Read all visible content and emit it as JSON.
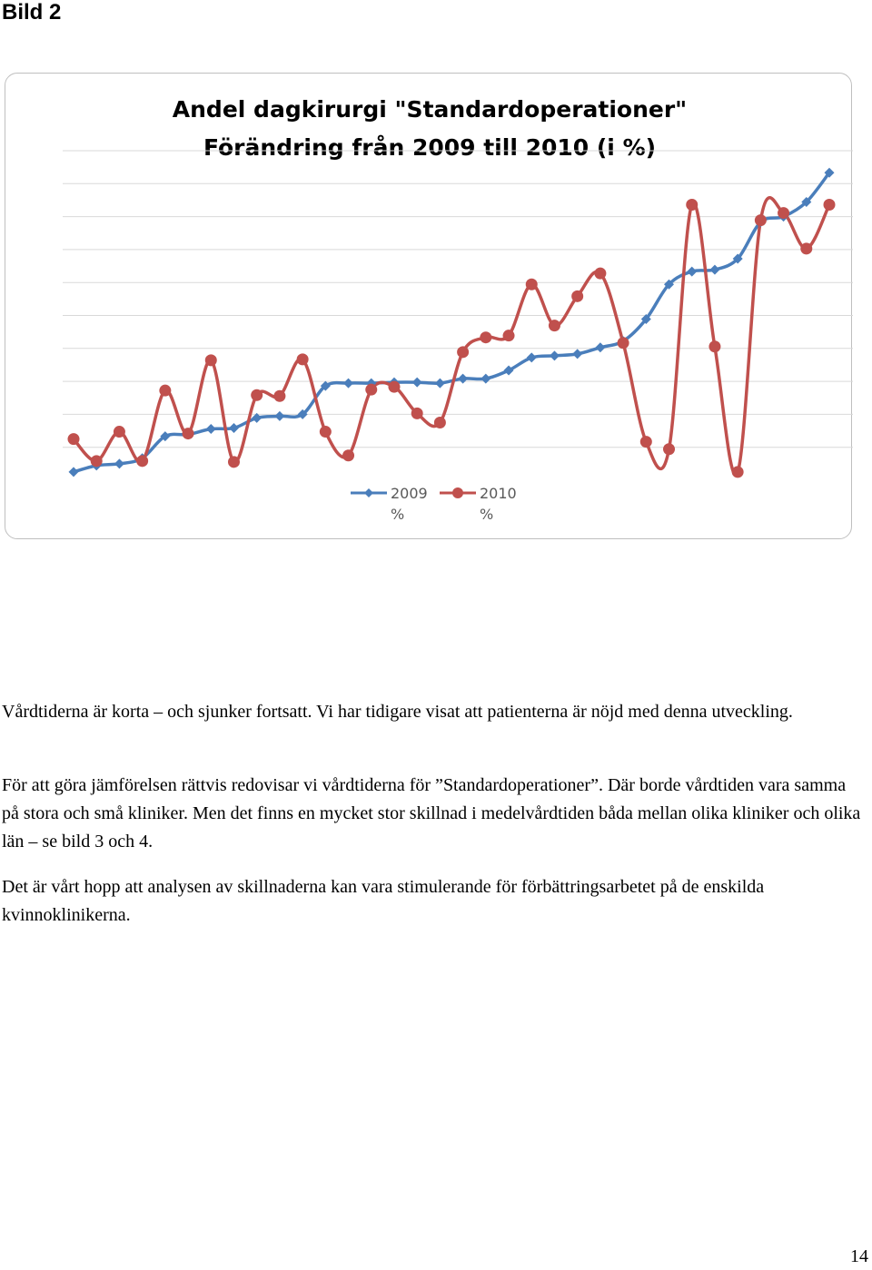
{
  "page": {
    "heading": "Bild 2",
    "page_number": "14"
  },
  "chart_data": {
    "type": "line",
    "title_line1": "Andel dagkirurgi  \"Standardoperationer\"",
    "title_line2": "Förändring från 2009 till 2010 (i %)",
    "xlabel": "",
    "ylabel": "",
    "grid": "horizontal",
    "legend_position": "bottom",
    "series": [
      {
        "name": "2009 %",
        "name_line1": "2009",
        "name_line2": "%",
        "color": "#4a7ebb",
        "marker": "diamond",
        "values": [
          0.9,
          1.6,
          1.8,
          2.4,
          4.8,
          5.0,
          5.6,
          5.7,
          6.8,
          7.0,
          7.2,
          10.3,
          10.6,
          10.6,
          10.7,
          10.7,
          10.6,
          11.1,
          11.1,
          12.0,
          13.4,
          13.6,
          13.8,
          14.5,
          15.2,
          17.6,
          21.4,
          22.8,
          23.0,
          24.2,
          28.2,
          28.8,
          30.4,
          33.6
        ]
      },
      {
        "name": "2010 %",
        "name_line1": "2010",
        "name_line2": "%",
        "color": "#c0504d",
        "marker": "circle",
        "values": [
          4.5,
          2.1,
          5.3,
          2.1,
          9.8,
          5.1,
          13.1,
          2.0,
          9.3,
          9.2,
          13.2,
          5.3,
          2.7,
          9.9,
          10.2,
          7.3,
          6.3,
          14.0,
          15.6,
          15.8,
          21.4,
          16.9,
          20.1,
          22.6,
          15.0,
          4.2,
          3.4,
          30.1,
          14.6,
          0.9,
          28.4,
          29.2,
          25.3,
          30.1
        ]
      }
    ],
    "ylim": [
      0,
      36
    ]
  },
  "text": {
    "paragraph1": "Vårdtiderna är korta – och sjunker fortsatt. Vi har tidigare visat att patienterna är nöjd med denna utveckling.",
    "paragraph2": "För att göra jämförelsen rättvis redovisar vi vårdtiderna för ”Standardoperationer”. Där borde vårdtiden vara samma på stora och små kliniker.  Men det finns en mycket stor skillnad i medelvårdtiden båda mellan olika kliniker och olika län – se bild 3 och 4.",
    "paragraph3": "Det är vårt hopp att analysen av skillnaderna kan vara stimulerande för förbättringsarbetet på de enskilda kvinnoklinikerna."
  }
}
